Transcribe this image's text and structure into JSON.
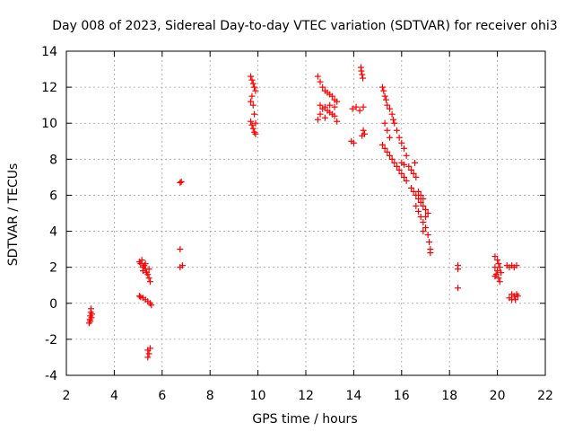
{
  "chart_data": {
    "type": "scatter",
    "title": "Day 008 of 2023, Sidereal Day-to-day VTEC variation (SDTVAR) for receiver ohi3",
    "xlabel": "GPS time / hours",
    "ylabel": "SDTVAR / TECUs",
    "xlim": [
      2,
      22
    ],
    "ylim": [
      -4,
      14
    ],
    "x_ticks": [
      2,
      4,
      6,
      8,
      10,
      12,
      14,
      16,
      18,
      20,
      22
    ],
    "y_ticks": [
      -4,
      -2,
      0,
      2,
      4,
      6,
      8,
      10,
      12,
      14
    ],
    "x_tick_labels": [
      "2",
      "4",
      "6",
      "8",
      "10",
      "12",
      "14",
      "16",
      "18",
      "20",
      "22"
    ],
    "y_tick_labels": [
      "-4",
      "-2",
      "0",
      "2",
      "4",
      "6",
      "8",
      "10",
      "12",
      "14"
    ],
    "grid": true,
    "marker": "plus",
    "color": "#ff0000",
    "series": [
      {
        "name": "SDTVAR",
        "points": [
          [
            2.95,
            -1.1
          ],
          [
            2.98,
            -0.9
          ],
          [
            3.0,
            -0.7
          ],
          [
            3.02,
            -0.5
          ],
          [
            3.03,
            -0.3
          ],
          [
            3.05,
            -0.8
          ],
          [
            3.0,
            -1.0
          ],
          [
            3.07,
            -0.6
          ],
          [
            5.05,
            2.3
          ],
          [
            5.1,
            2.2
          ],
          [
            5.15,
            2.4
          ],
          [
            5.2,
            2.0
          ],
          [
            5.25,
            2.1
          ],
          [
            5.3,
            1.9
          ],
          [
            5.35,
            1.7
          ],
          [
            5.4,
            1.6
          ],
          [
            5.45,
            1.4
          ],
          [
            5.5,
            1.2
          ],
          [
            5.2,
            1.8
          ],
          [
            5.3,
            2.2
          ],
          [
            5.45,
            1.9
          ],
          [
            5.05,
            0.4
          ],
          [
            5.1,
            0.35
          ],
          [
            5.2,
            0.3
          ],
          [
            5.3,
            0.2
          ],
          [
            5.4,
            0.1
          ],
          [
            5.5,
            0.0
          ],
          [
            5.55,
            -0.1
          ],
          [
            5.4,
            -2.6
          ],
          [
            5.45,
            -2.8
          ],
          [
            5.5,
            -2.5
          ],
          [
            5.4,
            -3.0
          ],
          [
            6.75,
            6.7
          ],
          [
            6.8,
            6.75
          ],
          [
            6.75,
            3.0
          ],
          [
            6.75,
            2.0
          ],
          [
            6.85,
            2.1
          ],
          [
            9.7,
            12.6
          ],
          [
            9.75,
            12.4
          ],
          [
            9.8,
            12.2
          ],
          [
            9.85,
            12.0
          ],
          [
            9.9,
            11.8
          ],
          [
            9.75,
            11.5
          ],
          [
            9.8,
            11.0
          ],
          [
            9.85,
            10.5
          ],
          [
            9.9,
            10.0
          ],
          [
            9.7,
            11.2
          ],
          [
            9.7,
            10.1
          ],
          [
            9.75,
            9.9
          ],
          [
            9.8,
            9.7
          ],
          [
            9.85,
            9.5
          ],
          [
            9.9,
            9.4
          ],
          [
            12.5,
            12.6
          ],
          [
            12.6,
            12.3
          ],
          [
            12.7,
            12.0
          ],
          [
            12.8,
            11.8
          ],
          [
            12.9,
            11.7
          ],
          [
            13.0,
            11.6
          ],
          [
            13.1,
            11.5
          ],
          [
            13.2,
            11.3
          ],
          [
            13.3,
            11.2
          ],
          [
            12.5,
            10.2
          ],
          [
            12.6,
            10.5
          ],
          [
            12.7,
            10.8
          ],
          [
            12.8,
            10.9
          ],
          [
            12.9,
            10.7
          ],
          [
            13.0,
            10.6
          ],
          [
            13.1,
            10.5
          ],
          [
            13.2,
            10.4
          ],
          [
            13.3,
            10.1
          ],
          [
            12.6,
            11.0
          ],
          [
            12.8,
            10.3
          ],
          [
            13.0,
            11.0
          ],
          [
            13.2,
            10.9
          ],
          [
            13.9,
            9.0
          ],
          [
            14.0,
            8.9
          ],
          [
            13.95,
            10.8
          ],
          [
            14.1,
            10.9
          ],
          [
            14.25,
            10.7
          ],
          [
            14.3,
            13.1
          ],
          [
            14.32,
            12.9
          ],
          [
            14.35,
            12.7
          ],
          [
            14.38,
            12.5
          ],
          [
            14.4,
            10.9
          ],
          [
            14.4,
            9.6
          ],
          [
            14.35,
            9.3
          ],
          [
            14.45,
            9.4
          ],
          [
            15.2,
            12.0
          ],
          [
            15.25,
            11.8
          ],
          [
            15.3,
            11.5
          ],
          [
            15.35,
            11.3
          ],
          [
            15.4,
            11.0
          ],
          [
            15.5,
            10.8
          ],
          [
            15.6,
            10.5
          ],
          [
            15.65,
            10.2
          ],
          [
            15.7,
            10.0
          ],
          [
            15.8,
            9.6
          ],
          [
            15.9,
            9.2
          ],
          [
            16.0,
            8.9
          ],
          [
            16.1,
            8.6
          ],
          [
            16.2,
            8.2
          ],
          [
            15.3,
            10.0
          ],
          [
            15.4,
            9.6
          ],
          [
            15.5,
            9.2
          ],
          [
            15.2,
            8.8
          ],
          [
            15.3,
            8.6
          ],
          [
            15.4,
            8.4
          ],
          [
            15.5,
            8.2
          ],
          [
            15.6,
            8.0
          ],
          [
            15.7,
            7.8
          ],
          [
            15.8,
            7.6
          ],
          [
            15.9,
            7.4
          ],
          [
            16.0,
            7.2
          ],
          [
            16.1,
            7.0
          ],
          [
            16.2,
            6.8
          ],
          [
            16.0,
            7.8
          ],
          [
            16.1,
            7.7
          ],
          [
            16.3,
            7.6
          ],
          [
            16.4,
            7.4
          ],
          [
            16.5,
            7.2
          ],
          [
            16.6,
            7.0
          ],
          [
            16.55,
            7.8
          ],
          [
            16.4,
            6.4
          ],
          [
            16.5,
            6.2
          ],
          [
            16.6,
            6.0
          ],
          [
            16.7,
            5.8
          ],
          [
            16.8,
            5.6
          ],
          [
            16.9,
            5.4
          ],
          [
            17.0,
            5.2
          ],
          [
            17.1,
            5.0
          ],
          [
            16.6,
            5.4
          ],
          [
            16.7,
            5.1
          ],
          [
            16.8,
            4.8
          ],
          [
            16.9,
            4.5
          ],
          [
            17.0,
            4.2
          ],
          [
            17.1,
            3.8
          ],
          [
            17.15,
            3.4
          ],
          [
            17.2,
            3.0
          ],
          [
            17.2,
            2.8
          ],
          [
            17.0,
            4.8
          ],
          [
            16.9,
            4.0
          ],
          [
            16.7,
            6.2
          ],
          [
            16.8,
            6.0
          ],
          [
            16.9,
            5.8
          ],
          [
            18.35,
            2.1
          ],
          [
            18.35,
            1.9
          ],
          [
            18.35,
            0.85
          ],
          [
            19.9,
            2.6
          ],
          [
            20.0,
            2.4
          ],
          [
            20.05,
            2.2
          ],
          [
            19.9,
            2.0
          ],
          [
            20.0,
            1.8
          ],
          [
            19.95,
            1.6
          ],
          [
            20.05,
            1.4
          ],
          [
            20.1,
            1.2
          ],
          [
            19.9,
            1.5
          ],
          [
            20.1,
            2.0
          ],
          [
            20.15,
            1.7
          ],
          [
            20.4,
            2.1
          ],
          [
            20.5,
            2.0
          ],
          [
            20.6,
            2.1
          ],
          [
            20.7,
            2.0
          ],
          [
            20.8,
            2.1
          ],
          [
            20.5,
            0.3
          ],
          [
            20.6,
            0.2
          ],
          [
            20.7,
            0.4
          ],
          [
            20.8,
            0.5
          ],
          [
            20.85,
            0.4
          ],
          [
            20.6,
            0.5
          ],
          [
            20.75,
            0.2
          ]
        ]
      }
    ]
  }
}
